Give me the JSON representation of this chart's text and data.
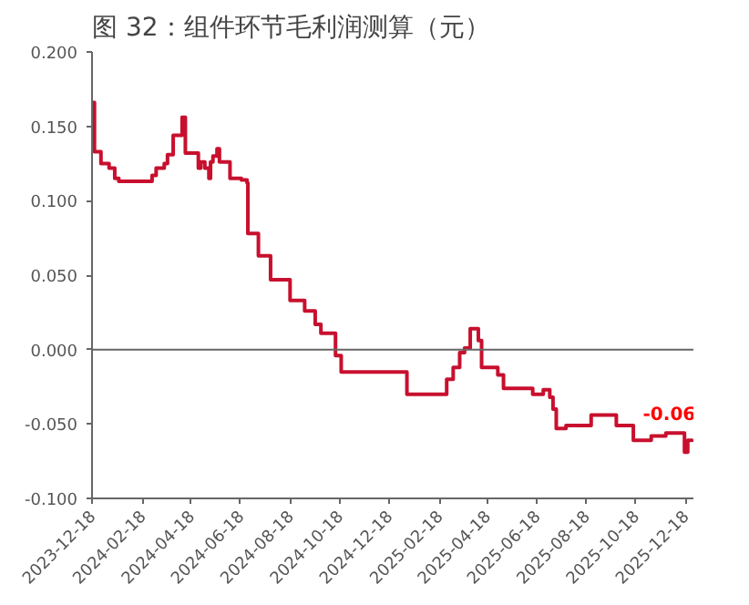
{
  "chart_data": {
    "type": "step",
    "title": "图 32：组件环节毛利润测算（元）",
    "x": [
      "2023-12-18",
      "2023-12-21",
      "2023-12-29",
      "2024-01-08",
      "2024-01-15",
      "2024-01-20",
      "2024-03-01",
      "2024-03-06",
      "2024-03-16",
      "2024-03-20",
      "2024-03-27",
      "2024-04-07",
      "2024-04-11",
      "2024-04-27",
      "2024-04-30",
      "2024-05-05",
      "2024-05-10",
      "2024-05-12",
      "2024-05-15",
      "2024-05-20",
      "2024-05-23",
      "2024-06-05",
      "2024-06-19",
      "2024-06-26",
      "2024-06-27",
      "2024-07-10",
      "2024-07-25",
      "2024-08-18",
      "2024-09-05",
      "2024-09-18",
      "2024-09-25",
      "2024-10-13",
      "2024-10-20",
      "2025-01-09",
      "2025-02-27",
      "2025-03-07",
      "2025-03-15",
      "2025-03-21",
      "2025-03-28",
      "2025-04-07",
      "2025-04-11",
      "2025-05-01",
      "2025-05-08",
      "2025-06-13",
      "2025-06-26",
      "2025-07-04",
      "2025-07-08",
      "2025-07-12",
      "2025-07-24",
      "2025-08-24",
      "2025-09-24",
      "2025-10-15",
      "2025-11-06",
      "2025-11-24",
      "2025-12-17",
      "2025-12-21",
      "2025-12-26"
    ],
    "series": [
      {
        "color": "#c8102e",
        "values": [
          0.166,
          0.133,
          0.125,
          0.122,
          0.115,
          0.113,
          0.117,
          0.122,
          0.125,
          0.131,
          0.144,
          0.156,
          0.132,
          0.122,
          0.126,
          0.122,
          0.115,
          0.126,
          0.13,
          0.135,
          0.126,
          0.115,
          0.114,
          0.112,
          0.078,
          0.063,
          0.047,
          0.033,
          0.026,
          0.017,
          0.011,
          -0.004,
          -0.015,
          -0.03,
          -0.02,
          -0.012,
          -0.002,
          0.001,
          0.014,
          0.006,
          -0.012,
          -0.017,
          -0.026,
          -0.03,
          -0.027,
          -0.032,
          -0.04,
          -0.053,
          -0.051,
          -0.044,
          -0.051,
          -0.061,
          -0.058,
          -0.056,
          -0.069,
          -0.061,
          -0.062
        ]
      }
    ],
    "xlim": [
      "2023-12-18",
      "2025-12-28"
    ],
    "xticks": [
      "2023-12-18",
      "2024-02-18",
      "2024-04-18",
      "2024-06-18",
      "2024-08-18",
      "2024-10-18",
      "2024-12-18",
      "2025-02-18",
      "2025-04-18",
      "2025-06-18",
      "2025-08-18",
      "2025-10-18",
      "2025-12-18"
    ],
    "ylim": [
      -0.1,
      0.2
    ],
    "yticks": [
      {
        "value": -0.1,
        "label": "-0.100"
      },
      {
        "value": -0.05,
        "label": "-0.050"
      },
      {
        "value": 0,
        "label": "0.000"
      },
      {
        "value": 0.05,
        "label": "0.050"
      },
      {
        "value": 0.1,
        "label": "0.100"
      },
      {
        "value": 0.15,
        "label": "0.150"
      },
      {
        "value": 0.2,
        "label": "0.200"
      }
    ],
    "ref_lines": [
      {
        "axis": "y",
        "value": 0,
        "color": "#666666"
      }
    ],
    "annotations": [
      {
        "text": "-0.06",
        "x": "2025-12-26",
        "y": -0.062
      }
    ],
    "grid": false
  }
}
